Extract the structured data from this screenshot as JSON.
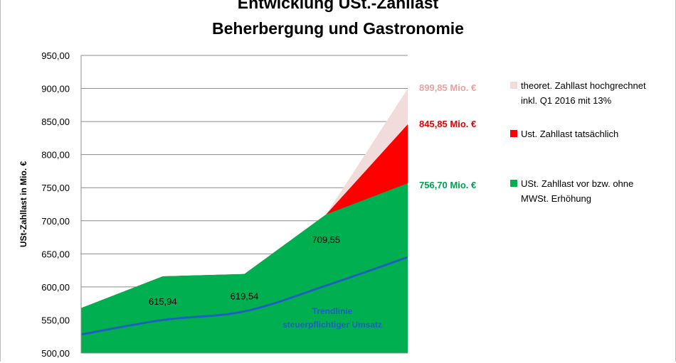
{
  "chart_data": {
    "type": "area",
    "title_line1": "Entwicklung USt.-Zahllast",
    "title_line2": "Beherbergung und Gastronomie",
    "ylabel": "USt-Zahllast  in Mio. €",
    "ylim": [
      500,
      950
    ],
    "yticks": [
      "950,00",
      "900,00",
      "850,00",
      "800,00",
      "750,00",
      "700,00",
      "650,00",
      "600,00",
      "550,00",
      "500,00"
    ],
    "ytick_values": [
      950,
      900,
      850,
      800,
      750,
      700,
      650,
      600,
      550,
      500
    ],
    "x_points": 5,
    "series": [
      {
        "name": "USt. Zahllast vor bzw. ohne MWSt. Erhöhung",
        "color": "#00b050",
        "values": [
          568,
          615.94,
          619.54,
          709.55,
          756.7
        ]
      },
      {
        "name": "Ust. Zahllast tatsächlich",
        "color": "#ff0000",
        "values": [
          568,
          615.94,
          619.54,
          709.55,
          845.85
        ]
      },
      {
        "name": "theoret. Zahllast hochgrechnet inkl. Q1 2016 mit 13%",
        "color": "#f2dcdb",
        "values": [
          568,
          615.94,
          619.54,
          709.55,
          899.85
        ]
      }
    ],
    "trendline": {
      "name": "Trendlinie steuerpflichtiger Umsatz",
      "color": "#1f5fbf",
      "values": [
        528,
        550,
        563,
        602,
        645
      ],
      "label_line1": "Trendlinie",
      "label_line2": "steuerpflichtiger Umsatz"
    },
    "data_labels": [
      "615,94",
      "619,54",
      "709,55"
    ],
    "end_labels": [
      {
        "text": "899,85 Mio.  €",
        "color": "#e6a3a1"
      },
      {
        "text": "845,85 Mio.  €",
        "color": "#e00000"
      },
      {
        "text": "756,70 Mio.  €",
        "color": "#00a050"
      }
    ],
    "legend": [
      {
        "line1": "theoret. Zahllast hochgrechnet",
        "line2": "inkl. Q1 2016 mit 13%",
        "color": "#f2dcdb"
      },
      {
        "line1": "Ust. Zahllast tatsächlich",
        "line2": "",
        "color": "#ff0000"
      },
      {
        "line1": "USt. Zahllast vor bzw. ohne",
        "line2": "MWSt. Erhöhung",
        "color": "#00b050"
      }
    ],
    "legend_position": "right",
    "grid": true
  }
}
